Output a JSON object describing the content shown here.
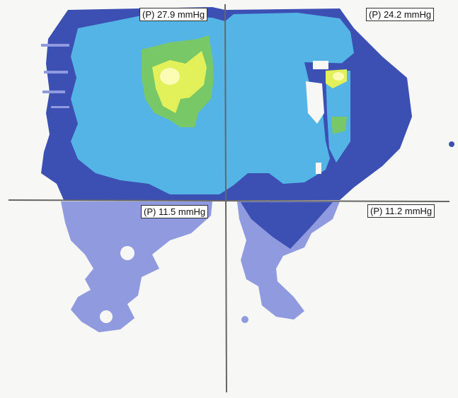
{
  "quadrant_labels": {
    "top_left": "(P) 27.9 mmHg",
    "top_right": "(P) 24.2 mmHg",
    "bottom_left": "(P) 11.5 mmHg",
    "bottom_right": "(P) 11.2 mmHg"
  },
  "colors": {
    "background": "#f7f7f5",
    "lavender": "#8f9adf",
    "navy": "#3c4fb3",
    "cyan": "#55b4e6",
    "green": "#78c868",
    "yellow": "#e2f05a",
    "highlight": "#fbfbb4",
    "crosshair": "#666666"
  }
}
